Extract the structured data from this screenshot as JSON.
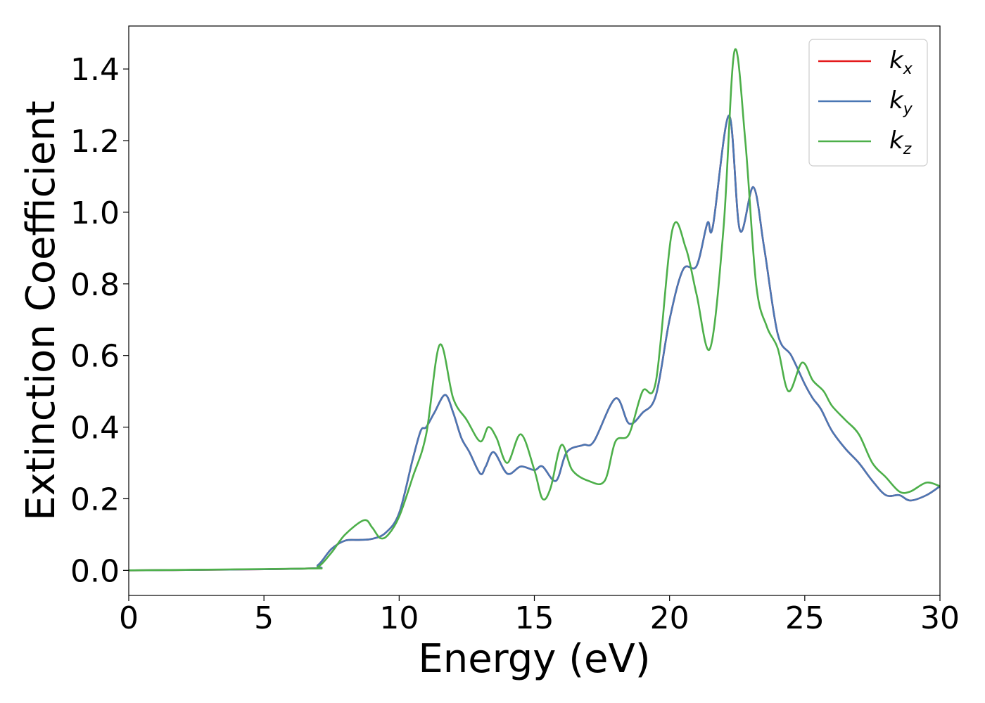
{
  "chart_data": {
    "type": "line",
    "xlabel": "Energy (eV)",
    "ylabel": "Extinction Coefficient",
    "xlim": [
      0,
      30
    ],
    "ylim": [
      -0.07,
      1.52
    ],
    "xticks": [
      0,
      5,
      10,
      15,
      20,
      25,
      30
    ],
    "xtick_labels": [
      "0",
      "5",
      "10",
      "15",
      "20",
      "25",
      "30"
    ],
    "yticks": [
      0.0,
      0.2,
      0.4,
      0.6,
      0.8,
      1.0,
      1.2,
      1.4
    ],
    "ytick_labels": [
      "0.0",
      "0.2",
      "0.4",
      "0.6",
      "0.8",
      "1.0",
      "1.2",
      "1.4"
    ],
    "grid": false,
    "legend_position": "top-right",
    "series": [
      {
        "name": "k",
        "subscript": "x",
        "color": "#e41a1c",
        "x": [
          0,
          6.5,
          7.0,
          7.5,
          8.0,
          8.5,
          9.0,
          9.5,
          10.0,
          10.5,
          10.8,
          11.0,
          11.3,
          11.7,
          12.0,
          12.3,
          12.6,
          13.0,
          13.2,
          13.5,
          14.0,
          14.5,
          15.0,
          15.3,
          15.8,
          16.2,
          16.8,
          17.2,
          18.0,
          18.5,
          19.0,
          19.5,
          20.0,
          20.5,
          21.0,
          21.4,
          21.6,
          22.2,
          22.6,
          23.1,
          23.5,
          24.0,
          24.5,
          25.0,
          25.3,
          25.6,
          26.0,
          26.5,
          27.0,
          27.5,
          28.0,
          28.5,
          28.9,
          29.5,
          30.0
        ],
        "y": [
          0.0,
          0.005,
          0.015,
          0.06,
          0.083,
          0.085,
          0.088,
          0.105,
          0.16,
          0.31,
          0.39,
          0.4,
          0.44,
          0.49,
          0.44,
          0.37,
          0.33,
          0.27,
          0.29,
          0.33,
          0.27,
          0.29,
          0.28,
          0.29,
          0.25,
          0.33,
          0.35,
          0.36,
          0.48,
          0.41,
          0.44,
          0.49,
          0.7,
          0.84,
          0.85,
          0.97,
          0.96,
          1.27,
          0.95,
          1.07,
          0.9,
          0.66,
          0.6,
          0.52,
          0.48,
          0.45,
          0.39,
          0.34,
          0.3,
          0.25,
          0.21,
          0.21,
          0.195,
          0.21,
          0.235
        ]
      },
      {
        "name": "k",
        "subscript": "y",
        "color": "#4a77b4",
        "x": [
          0,
          6.5,
          7.0,
          7.5,
          8.0,
          8.5,
          9.0,
          9.5,
          10.0,
          10.5,
          10.8,
          11.0,
          11.3,
          11.7,
          12.0,
          12.3,
          12.6,
          13.0,
          13.2,
          13.5,
          14.0,
          14.5,
          15.0,
          15.3,
          15.8,
          16.2,
          16.8,
          17.2,
          18.0,
          18.5,
          19.0,
          19.5,
          20.0,
          20.5,
          21.0,
          21.4,
          21.6,
          22.2,
          22.6,
          23.1,
          23.5,
          24.0,
          24.5,
          25.0,
          25.3,
          25.6,
          26.0,
          26.5,
          27.0,
          27.5,
          28.0,
          28.5,
          28.9,
          29.5,
          30.0
        ],
        "y": [
          0.0,
          0.005,
          0.015,
          0.06,
          0.083,
          0.085,
          0.088,
          0.105,
          0.16,
          0.31,
          0.39,
          0.4,
          0.44,
          0.49,
          0.44,
          0.37,
          0.33,
          0.27,
          0.29,
          0.33,
          0.27,
          0.29,
          0.28,
          0.29,
          0.25,
          0.33,
          0.35,
          0.36,
          0.48,
          0.41,
          0.44,
          0.49,
          0.7,
          0.84,
          0.85,
          0.97,
          0.96,
          1.27,
          0.95,
          1.07,
          0.9,
          0.66,
          0.6,
          0.52,
          0.48,
          0.45,
          0.39,
          0.34,
          0.3,
          0.25,
          0.21,
          0.21,
          0.195,
          0.21,
          0.235
        ]
      },
      {
        "name": "k",
        "subscript": "z",
        "color": "#4daf4a",
        "x": [
          0,
          6.5,
          7.0,
          7.5,
          8.0,
          8.7,
          9.0,
          9.3,
          9.6,
          10.0,
          10.5,
          11.0,
          11.5,
          12.0,
          12.5,
          13.0,
          13.3,
          13.6,
          14.0,
          14.5,
          15.0,
          15.3,
          15.6,
          16.0,
          16.4,
          17.0,
          17.6,
          18.0,
          18.5,
          19.0,
          19.5,
          20.1,
          20.6,
          21.0,
          21.5,
          22.0,
          22.4,
          22.8,
          23.2,
          23.6,
          24.0,
          24.4,
          24.9,
          25.3,
          25.7,
          26.0,
          26.5,
          27.0,
          27.5,
          28.0,
          28.5,
          28.9,
          29.5,
          30.0
        ],
        "y": [
          0.0,
          0.005,
          0.01,
          0.05,
          0.1,
          0.14,
          0.12,
          0.09,
          0.1,
          0.15,
          0.26,
          0.38,
          0.63,
          0.48,
          0.42,
          0.36,
          0.4,
          0.37,
          0.3,
          0.38,
          0.28,
          0.2,
          0.23,
          0.35,
          0.28,
          0.25,
          0.25,
          0.36,
          0.38,
          0.5,
          0.53,
          0.95,
          0.9,
          0.77,
          0.62,
          0.96,
          1.45,
          1.2,
          0.8,
          0.68,
          0.62,
          0.5,
          0.58,
          0.53,
          0.5,
          0.46,
          0.42,
          0.38,
          0.3,
          0.26,
          0.22,
          0.22,
          0.245,
          0.235
        ]
      }
    ]
  }
}
